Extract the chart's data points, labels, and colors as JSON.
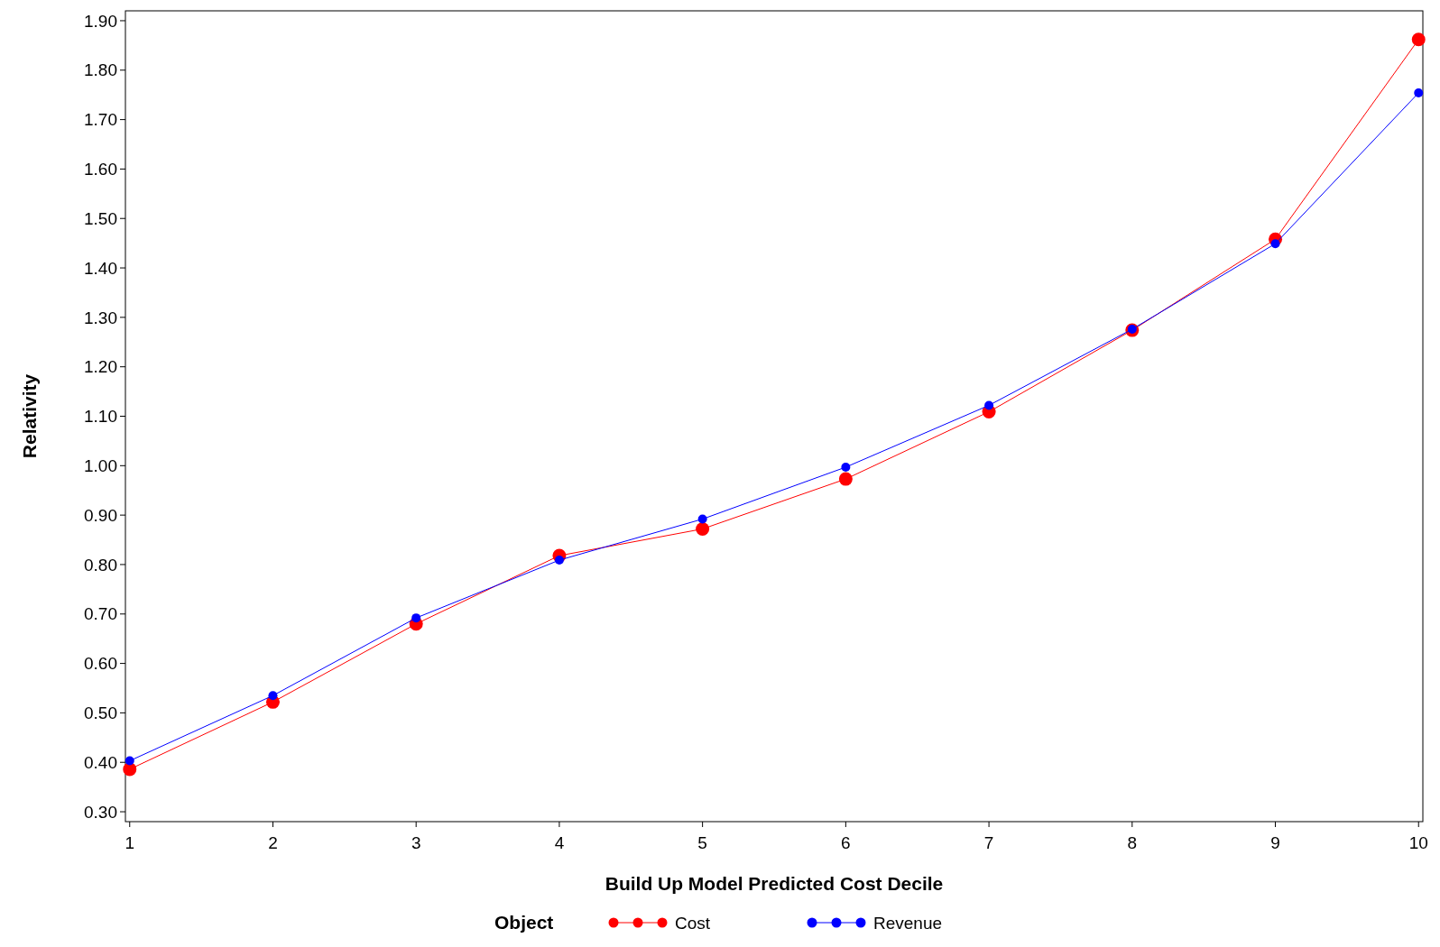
{
  "chart_data": {
    "type": "line",
    "xlabel": "Build Up Model Predicted Cost Decile",
    "ylabel": "Relativity",
    "legend_title": "Object",
    "x": [
      1,
      2,
      3,
      4,
      5,
      6,
      7,
      8,
      9,
      10
    ],
    "series": [
      {
        "name": "Cost",
        "color": "#ff0000",
        "values": [
          0.386,
          0.522,
          0.68,
          0.818,
          0.872,
          0.973,
          1.109,
          1.274,
          1.458,
          1.862
        ]
      },
      {
        "name": "Revenue",
        "color": "#0000ff",
        "values": [
          0.403,
          0.535,
          0.692,
          0.809,
          0.892,
          0.997,
          1.122,
          1.276,
          1.449,
          1.754
        ]
      }
    ],
    "xlim": [
      0.97,
      10.03
    ],
    "xticks": [
      1,
      2,
      3,
      4,
      5,
      6,
      7,
      8,
      9,
      10
    ],
    "ylim": [
      0.28,
      1.92
    ],
    "yticks": [
      {
        "value": 0.3,
        "label": "0.30"
      },
      {
        "value": 0.4,
        "label": "0.40"
      },
      {
        "value": 0.5,
        "label": "0.50"
      },
      {
        "value": 0.6,
        "label": "0.60"
      },
      {
        "value": 0.7,
        "label": "0.70"
      },
      {
        "value": 0.8,
        "label": "0.80"
      },
      {
        "value": 0.9,
        "label": "0.90"
      },
      {
        "value": 1.0,
        "label": "1.00"
      },
      {
        "value": 1.1,
        "label": "1.10"
      },
      {
        "value": 1.2,
        "label": "1.20"
      },
      {
        "value": 1.3,
        "label": "1.30"
      },
      {
        "value": 1.4,
        "label": "1.40"
      },
      {
        "value": 1.5,
        "label": "1.50"
      },
      {
        "value": 1.6,
        "label": "1.60"
      },
      {
        "value": 1.7,
        "label": "1.70"
      },
      {
        "value": 1.8,
        "label": "1.80"
      },
      {
        "value": 1.9,
        "label": "1.90"
      }
    ],
    "grid": false,
    "legend": "bottom",
    "marker": "circle",
    "line_style": "solid"
  }
}
